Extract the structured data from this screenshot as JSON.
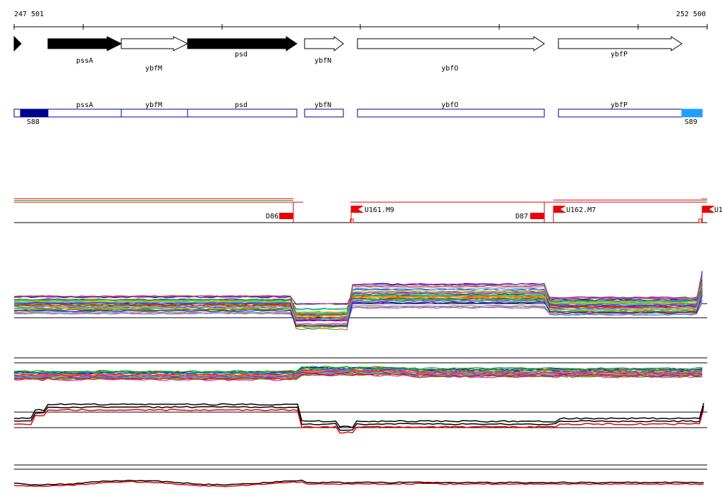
{
  "ruler": {
    "start": "247 501",
    "end": "252 500"
  },
  "genes": [
    {
      "label": "pssA"
    },
    {
      "label": "ybfM"
    },
    {
      "label": "psd"
    },
    {
      "label": "ybfN"
    },
    {
      "label": "ybfO"
    },
    {
      "label": "ybfP"
    }
  ],
  "operons": [
    {
      "label": "pssA"
    },
    {
      "label": "ybfM"
    },
    {
      "label": "psd"
    },
    {
      "label": "ybfN"
    },
    {
      "label": "ybfO"
    },
    {
      "label": "ybfP"
    }
  ],
  "segments": [
    {
      "label": "S88"
    },
    {
      "label": "S89"
    }
  ],
  "features": [
    {
      "label": "D86"
    },
    {
      "label": "U161.M9"
    },
    {
      "label": "D87"
    },
    {
      "label": "U162.M7"
    },
    {
      "label": "U1"
    }
  ]
}
